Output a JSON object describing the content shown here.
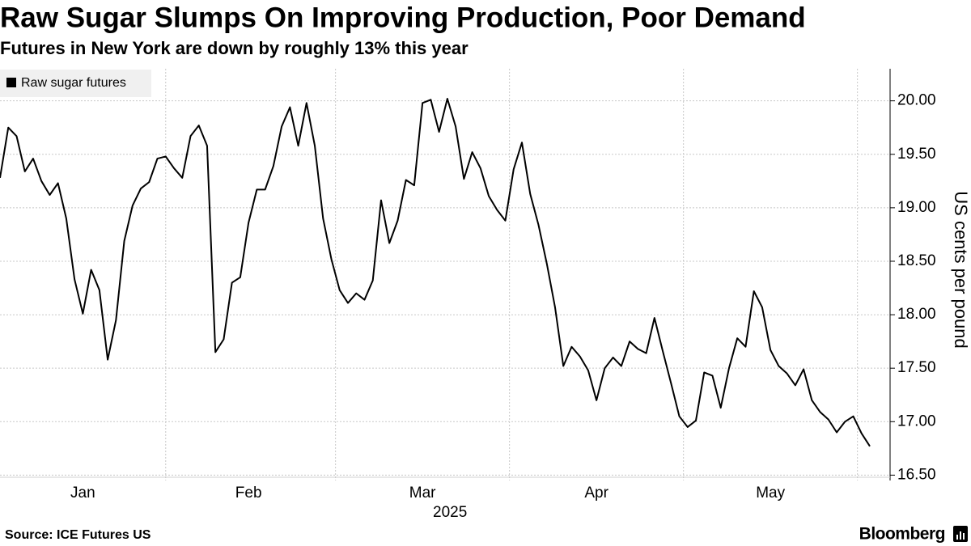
{
  "chart_data": {
    "type": "line",
    "title": "Raw Sugar Slumps On Improving Production, Poor Demand",
    "subtitle": "Futures in New York are down by roughly 13% this year",
    "y_label": "US cents per pound",
    "year_label": "2025",
    "source": "Source: ICE Futures US",
    "brand": "Bloomberg",
    "legend": "top-left",
    "grid": true,
    "categories": [
      null,
      null,
      null,
      null,
      null,
      null,
      null,
      null,
      null,
      null,
      "Jan",
      null,
      null,
      null,
      null,
      null,
      null,
      null,
      null,
      null,
      null,
      null,
      null,
      null,
      null,
      null,
      null,
      null,
      null,
      null,
      "Feb",
      null,
      null,
      null,
      null,
      null,
      null,
      null,
      null,
      null,
      null,
      null,
      null,
      null,
      null,
      null,
      null,
      null,
      null,
      null,
      null,
      "Mar",
      null,
      null,
      null,
      null,
      null,
      null,
      null,
      null,
      null,
      null,
      null,
      null,
      null,
      null,
      null,
      null,
      null,
      null,
      null,
      null,
      "Apr",
      null,
      null,
      null,
      null,
      null,
      null,
      null,
      null,
      null,
      null,
      null,
      null,
      null,
      null,
      null,
      null,
      null,
      null,
      null,
      null,
      "May",
      null,
      null,
      null,
      null,
      null,
      null,
      null,
      null,
      null,
      null,
      null,
      null
    ],
    "series": [
      {
        "name": "Raw sugar futures",
        "color": "#000000",
        "values": [
          19.28,
          19.75,
          19.67,
          19.34,
          19.46,
          19.25,
          19.12,
          19.23,
          18.9,
          18.33,
          18.01,
          18.42,
          18.23,
          17.58,
          17.95,
          18.69,
          19.02,
          19.18,
          19.24,
          19.46,
          19.48,
          19.37,
          19.28,
          19.67,
          19.77,
          19.58,
          17.65,
          17.77,
          18.3,
          18.35,
          18.86,
          19.17,
          19.17,
          19.39,
          19.76,
          19.94,
          19.58,
          19.98,
          19.58,
          18.9,
          18.52,
          18.23,
          18.11,
          18.2,
          18.14,
          18.32,
          19.07,
          18.67,
          18.88,
          19.26,
          19.21,
          19.98,
          20.01,
          19.71,
          20.02,
          19.76,
          19.27,
          19.52,
          19.37,
          19.11,
          18.98,
          18.88,
          19.36,
          19.61,
          19.13,
          18.84,
          18.48,
          18.07,
          17.52,
          17.7,
          17.61,
          17.48,
          17.2,
          17.5,
          17.6,
          17.52,
          17.75,
          17.68,
          17.64,
          17.97,
          17.66,
          17.36,
          17.05,
          16.95,
          17.01,
          17.46,
          17.43,
          17.13,
          17.5,
          17.78,
          17.7,
          18.22,
          18.07,
          17.67,
          17.52,
          17.45,
          17.34,
          17.49,
          17.2,
          17.09,
          17.02,
          16.9,
          17.0,
          17.05,
          16.89,
          16.77
        ]
      }
    ],
    "ylim": [
      16.45,
      20.3
    ],
    "yticks": [
      {
        "value": 16.5,
        "label": "16.50"
      },
      {
        "value": 17,
        "label": "17.00"
      },
      {
        "value": 17.5,
        "label": "17.50"
      },
      {
        "value": 18,
        "label": "18.00"
      },
      {
        "value": 18.5,
        "label": "18.50"
      },
      {
        "value": 19,
        "label": "19.00"
      },
      {
        "value": 19.5,
        "label": "19.50"
      },
      {
        "value": 20,
        "label": "20.00"
      }
    ]
  }
}
